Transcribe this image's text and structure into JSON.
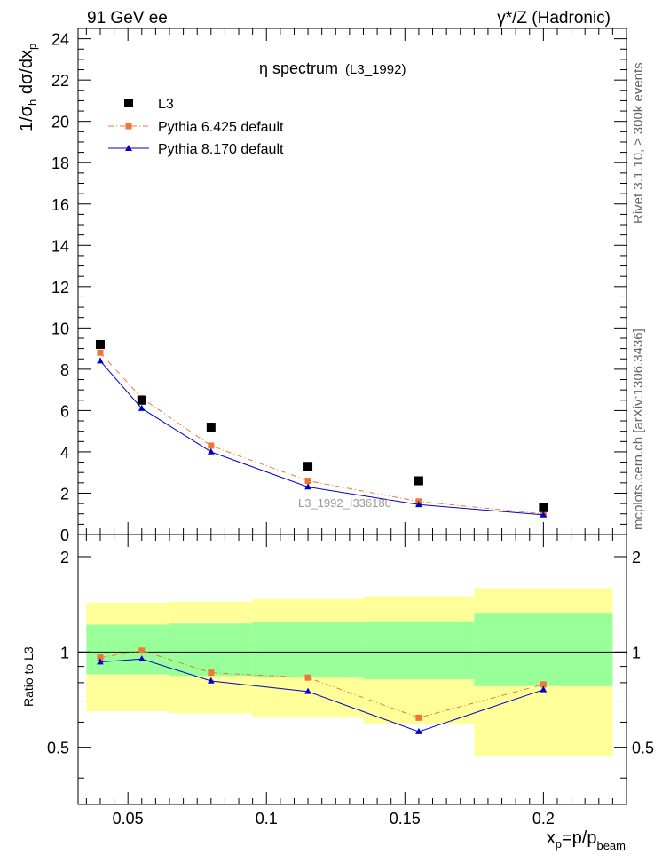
{
  "header": {
    "left": "91 GeV ee",
    "right": "γ*/Z (Hadronic)"
  },
  "side_text": {
    "upper": "Rivet 3.1.10, ≥ 300k events",
    "lower": "mcplots.cern.ch [arXiv:1306.3436]"
  },
  "chart_data": [
    {
      "type": "scatter",
      "title": "η spectrum",
      "subtitle": "(L3_1992)",
      "watermark": "L3_1992_I336180",
      "ylabel": "1/σh dσ/dxp",
      "xlim": [
        0.032,
        0.23
      ],
      "ylim": [
        0,
        24.5
      ],
      "yticks": [
        0,
        2,
        4,
        6,
        8,
        10,
        12,
        14,
        16,
        18,
        20,
        22,
        24
      ],
      "ytick_labels": [
        "0",
        "2",
        "4",
        "6",
        "8",
        "10",
        "12",
        "14",
        "16",
        "18",
        "20",
        "22",
        "24"
      ],
      "legend_position": "top-left",
      "series": [
        {
          "name": "L3",
          "marker": "square",
          "color": "#000000",
          "x": [
            0.04,
            0.055,
            0.08,
            0.115,
            0.155,
            0.2
          ],
          "y": [
            9.2,
            6.5,
            5.2,
            3.3,
            2.6,
            1.3
          ]
        },
        {
          "name": "Pythia 6.425 default",
          "marker": "square",
          "color": "#ee7733",
          "line": "dash-dot",
          "x": [
            0.04,
            0.055,
            0.08,
            0.115,
            0.155,
            0.2
          ],
          "y": [
            8.8,
            6.6,
            4.3,
            2.6,
            1.6,
            1.0
          ]
        },
        {
          "name": "Pythia 8.170 default",
          "marker": "triangle",
          "color": "#0000cc",
          "line": "solid",
          "x": [
            0.04,
            0.055,
            0.08,
            0.115,
            0.155,
            0.2
          ],
          "y": [
            8.4,
            6.1,
            4.0,
            2.3,
            1.45,
            0.95
          ]
        }
      ]
    },
    {
      "type": "scatter",
      "ylabel": "Ratio to L3",
      "xlabel": "xp=p/pbeam",
      "xlim": [
        0.032,
        0.23
      ],
      "ylim": [
        0.33,
        2.35
      ],
      "xticks": [
        0.05,
        0.1,
        0.15,
        0.2
      ],
      "xtick_labels": [
        "0.05",
        "0.1",
        "0.15",
        "0.2"
      ],
      "yticks": [
        0.5,
        1,
        2
      ],
      "ytick_labels": [
        "0.5",
        "1",
        "2"
      ],
      "bands": {
        "x_edges": [
          0.035,
          0.045,
          0.065,
          0.095,
          0.135,
          0.175,
          0.225
        ],
        "yellow_low": [
          0.65,
          0.65,
          0.64,
          0.62,
          0.59,
          0.47
        ],
        "yellow_high": [
          1.43,
          1.43,
          1.44,
          1.47,
          1.5,
          1.59
        ],
        "green_low": [
          0.85,
          0.85,
          0.84,
          0.83,
          0.82,
          0.78
        ],
        "green_high": [
          1.22,
          1.22,
          1.23,
          1.24,
          1.25,
          1.33
        ],
        "yellow_color": "#ffff99",
        "green_color": "#99ff99"
      },
      "series": [
        {
          "name": "Pythia 6.425 default",
          "marker": "square",
          "color": "#ee7733",
          "line": "dash-dot",
          "x": [
            0.04,
            0.055,
            0.08,
            0.115,
            0.155,
            0.2
          ],
          "y": [
            0.96,
            1.01,
            0.86,
            0.83,
            0.62,
            0.79
          ]
        },
        {
          "name": "Pythia 8.170 default",
          "marker": "triangle",
          "color": "#0000cc",
          "line": "solid",
          "x": [
            0.04,
            0.055,
            0.08,
            0.115,
            0.155,
            0.2
          ],
          "y": [
            0.93,
            0.95,
            0.81,
            0.75,
            0.56,
            0.76
          ]
        }
      ]
    }
  ]
}
